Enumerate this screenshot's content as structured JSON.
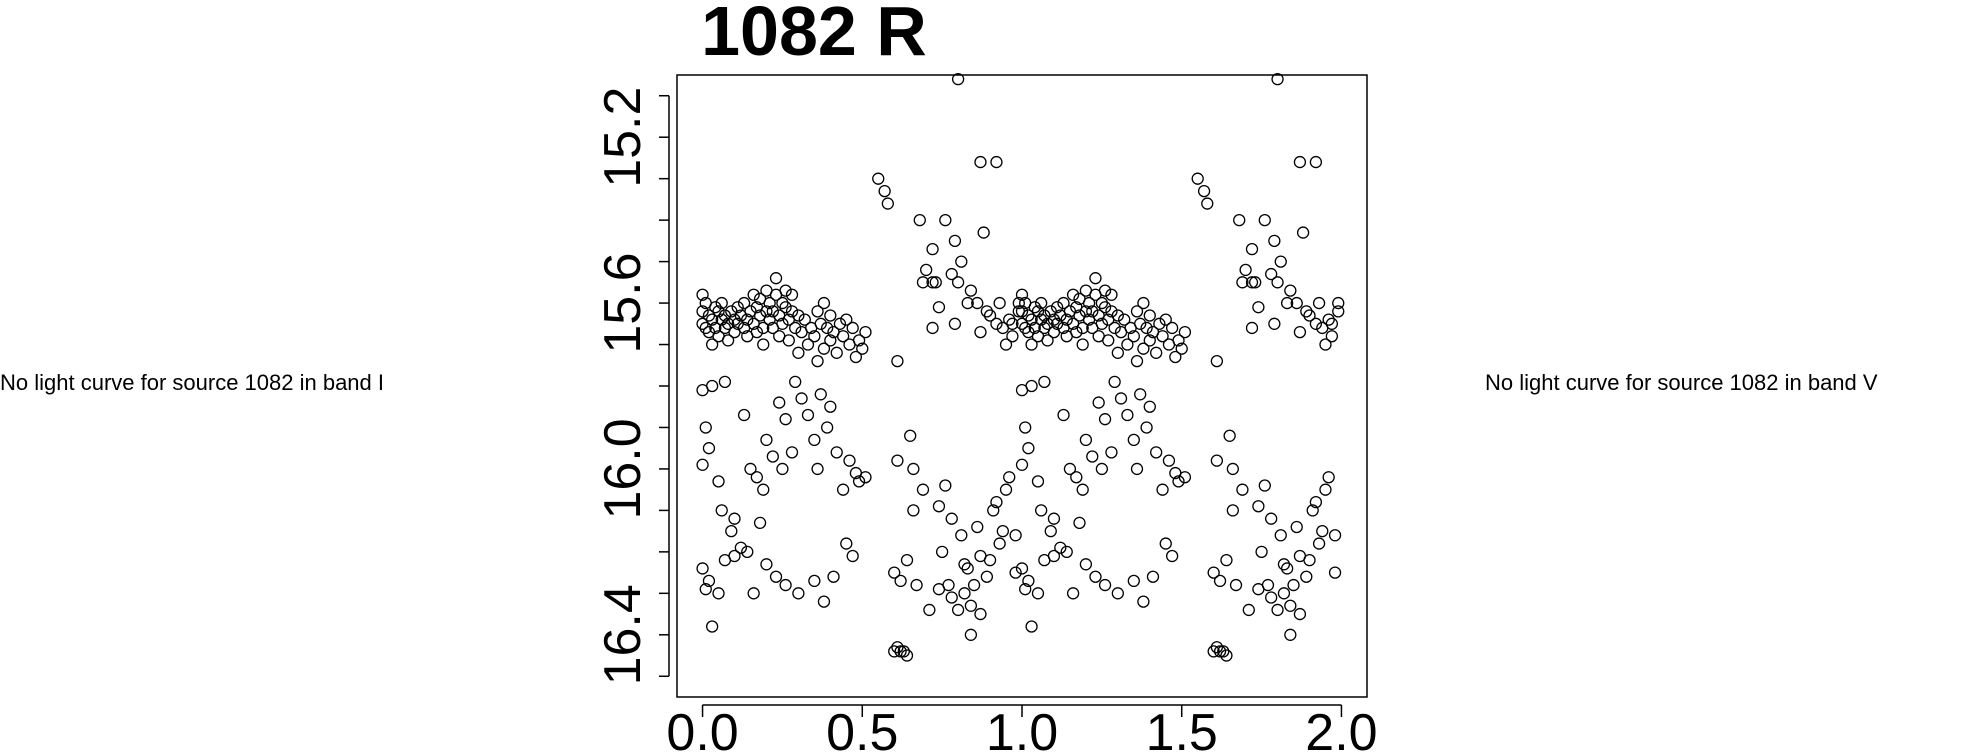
{
  "left_note": "No light curve for source 1082 in band I",
  "right_note": "No light curve for source 1082 in band V",
  "chart_data": {
    "type": "scatter",
    "title": "1082 R",
    "xlabel": "",
    "ylabel": "",
    "xlim": [
      -0.08,
      2.08
    ],
    "ylim": [
      16.55,
      15.05
    ],
    "y_inverted": true,
    "x_ticks": [
      "0.0",
      "0.5",
      "1.0",
      "1.5",
      "2.0"
    ],
    "x_tick_values": [
      0.0,
      0.5,
      1.0,
      1.5,
      2.0
    ],
    "y_ticks": [
      "15.2",
      "15.6",
      "16.0",
      "16.4"
    ],
    "y_tick_values": [
      15.2,
      15.6,
      16.0,
      16.4
    ],
    "y_minor_ticks": [
      15.1,
      15.3,
      15.4,
      15.5,
      15.7,
      15.8,
      15.9,
      16.1,
      16.2,
      16.3,
      16.5
    ],
    "marker": "open-circle",
    "marker_color": "#000000",
    "grid": false,
    "phased_duplicate_offset": 1.0,
    "points_phase_0_to_1": [
      [
        0.0,
        15.62
      ],
      [
        0.0,
        15.65
      ],
      [
        0.0,
        15.58
      ],
      [
        0.01,
        15.66
      ],
      [
        0.01,
        15.6
      ],
      [
        0.02,
        15.63
      ],
      [
        0.02,
        15.67
      ],
      [
        0.03,
        15.64
      ],
      [
        0.03,
        15.7
      ],
      [
        0.04,
        15.61
      ],
      [
        0.04,
        15.66
      ],
      [
        0.05,
        15.62
      ],
      [
        0.05,
        15.68
      ],
      [
        0.06,
        15.64
      ],
      [
        0.06,
        15.6
      ],
      [
        0.07,
        15.66
      ],
      [
        0.07,
        15.63
      ],
      [
        0.08,
        15.65
      ],
      [
        0.08,
        15.69
      ],
      [
        0.09,
        15.62
      ],
      [
        0.1,
        15.64
      ],
      [
        0.1,
        15.67
      ],
      [
        0.11,
        15.61
      ],
      [
        0.11,
        15.65
      ],
      [
        0.12,
        15.63
      ],
      [
        0.13,
        15.66
      ],
      [
        0.13,
        15.6
      ],
      [
        0.14,
        15.64
      ],
      [
        0.14,
        15.68
      ],
      [
        0.15,
        15.62
      ],
      [
        0.16,
        15.58
      ],
      [
        0.16,
        15.65
      ],
      [
        0.17,
        15.61
      ],
      [
        0.17,
        15.67
      ],
      [
        0.18,
        15.63
      ],
      [
        0.18,
        15.59
      ],
      [
        0.19,
        15.66
      ],
      [
        0.19,
        15.7
      ],
      [
        0.2,
        15.62
      ],
      [
        0.2,
        15.57
      ],
      [
        0.21,
        15.64
      ],
      [
        0.21,
        15.6
      ],
      [
        0.22,
        15.66
      ],
      [
        0.22,
        15.62
      ],
      [
        0.23,
        15.58
      ],
      [
        0.23,
        15.54
      ],
      [
        0.24,
        15.63
      ],
      [
        0.24,
        15.68
      ],
      [
        0.25,
        15.6
      ],
      [
        0.25,
        15.65
      ],
      [
        0.26,
        15.61
      ],
      [
        0.26,
        15.57
      ],
      [
        0.27,
        15.64
      ],
      [
        0.27,
        15.69
      ],
      [
        0.28,
        15.62
      ],
      [
        0.28,
        15.58
      ],
      [
        0.29,
        15.66
      ],
      [
        0.3,
        15.63
      ],
      [
        0.3,
        15.72
      ],
      [
        0.31,
        15.67
      ],
      [
        0.32,
        15.64
      ],
      [
        0.33,
        15.7
      ],
      [
        0.34,
        15.66
      ],
      [
        0.35,
        15.68
      ],
      [
        0.36,
        15.62
      ],
      [
        0.36,
        15.74
      ],
      [
        0.37,
        15.65
      ],
      [
        0.38,
        15.6
      ],
      [
        0.38,
        15.71
      ],
      [
        0.39,
        15.66
      ],
      [
        0.4,
        15.63
      ],
      [
        0.4,
        15.69
      ],
      [
        0.41,
        15.67
      ],
      [
        0.42,
        15.72
      ],
      [
        0.43,
        15.65
      ],
      [
        0.44,
        15.68
      ],
      [
        0.45,
        15.64
      ],
      [
        0.46,
        15.7
      ],
      [
        0.47,
        15.66
      ],
      [
        0.48,
        15.73
      ],
      [
        0.49,
        15.69
      ],
      [
        0.5,
        15.71
      ],
      [
        0.51,
        15.67
      ],
      [
        0.0,
        15.81
      ],
      [
        0.01,
        15.9
      ],
      [
        0.02,
        15.95
      ],
      [
        0.03,
        15.8
      ],
      [
        0.05,
        16.03
      ],
      [
        0.06,
        16.1
      ],
      [
        0.07,
        15.79
      ],
      [
        0.09,
        16.15
      ],
      [
        0.1,
        16.12
      ],
      [
        0.12,
        16.19
      ],
      [
        0.13,
        15.87
      ],
      [
        0.15,
        16.0
      ],
      [
        0.17,
        16.02
      ],
      [
        0.18,
        16.13
      ],
      [
        0.19,
        16.05
      ],
      [
        0.2,
        15.93
      ],
      [
        0.22,
        15.97
      ],
      [
        0.24,
        15.84
      ],
      [
        0.25,
        16.0
      ],
      [
        0.26,
        15.88
      ],
      [
        0.28,
        15.96
      ],
      [
        0.29,
        15.79
      ],
      [
        0.31,
        15.83
      ],
      [
        0.33,
        15.87
      ],
      [
        0.35,
        15.93
      ],
      [
        0.36,
        16.0
      ],
      [
        0.37,
        15.82
      ],
      [
        0.39,
        15.9
      ],
      [
        0.4,
        15.85
      ],
      [
        0.42,
        15.96
      ],
      [
        0.44,
        16.05
      ],
      [
        0.46,
        15.98
      ],
      [
        0.48,
        16.01
      ],
      [
        0.49,
        16.03
      ],
      [
        0.51,
        16.02
      ],
      [
        0.0,
        16.24
      ],
      [
        0.01,
        16.29
      ],
      [
        0.02,
        16.27
      ],
      [
        0.03,
        16.38
      ],
      [
        0.05,
        16.3
      ],
      [
        0.07,
        16.22
      ],
      [
        0.1,
        16.21
      ],
      [
        0.14,
        16.2
      ],
      [
        0.16,
        16.3
      ],
      [
        0.2,
        16.23
      ],
      [
        0.23,
        16.26
      ],
      [
        0.26,
        16.28
      ],
      [
        0.3,
        16.3
      ],
      [
        0.35,
        16.27
      ],
      [
        0.38,
        16.32
      ],
      [
        0.41,
        16.26
      ],
      [
        0.45,
        16.18
      ],
      [
        0.47,
        16.21
      ],
      [
        0.55,
        15.3
      ],
      [
        0.57,
        15.33
      ],
      [
        0.58,
        15.36
      ],
      [
        0.6,
        16.25
      ],
      [
        0.61,
        15.74
      ],
      [
        0.62,
        16.44
      ],
      [
        0.64,
        16.45
      ],
      [
        0.65,
        15.92
      ],
      [
        0.66,
        16.0
      ],
      [
        0.67,
        16.28
      ],
      [
        0.68,
        15.4
      ],
      [
        0.69,
        15.55
      ],
      [
        0.7,
        15.52
      ],
      [
        0.71,
        16.34
      ],
      [
        0.72,
        15.47
      ],
      [
        0.73,
        15.55
      ],
      [
        0.74,
        16.29
      ],
      [
        0.75,
        16.2
      ],
      [
        0.76,
        15.4
      ],
      [
        0.77,
        16.28
      ],
      [
        0.78,
        16.31
      ],
      [
        0.79,
        15.45
      ],
      [
        0.8,
        15.55
      ],
      [
        0.81,
        15.5
      ],
      [
        0.81,
        16.16
      ],
      [
        0.82,
        16.3
      ],
      [
        0.83,
        16.24
      ],
      [
        0.84,
        15.57
      ],
      [
        0.84,
        16.4
      ],
      [
        0.85,
        16.28
      ],
      [
        0.86,
        15.6
      ],
      [
        0.87,
        16.35
      ],
      [
        0.88,
        15.43
      ],
      [
        0.89,
        15.62
      ],
      [
        0.9,
        16.22
      ],
      [
        0.91,
        16.1
      ],
      [
        0.92,
        15.65
      ],
      [
        0.93,
        16.18
      ],
      [
        0.94,
        15.66
      ],
      [
        0.95,
        16.05
      ],
      [
        0.96,
        15.64
      ],
      [
        0.97,
        15.68
      ],
      [
        0.98,
        16.25
      ],
      [
        0.99,
        15.62
      ],
      [
        0.0,
        15.99
      ],
      [
        0.6,
        16.44
      ],
      [
        0.61,
        16.43
      ],
      [
        0.61,
        15.98
      ],
      [
        0.62,
        16.27
      ],
      [
        0.63,
        16.44
      ],
      [
        0.64,
        16.22
      ],
      [
        0.66,
        16.1
      ],
      [
        0.69,
        16.05
      ],
      [
        0.72,
        15.66
      ],
      [
        0.74,
        16.09
      ],
      [
        0.76,
        16.04
      ],
      [
        0.78,
        16.12
      ],
      [
        0.8,
        16.34
      ],
      [
        0.82,
        16.23
      ],
      [
        0.84,
        16.33
      ],
      [
        0.86,
        16.14
      ],
      [
        0.87,
        16.21
      ],
      [
        0.89,
        16.26
      ],
      [
        0.92,
        16.08
      ],
      [
        0.94,
        16.15
      ],
      [
        0.96,
        16.02
      ],
      [
        0.98,
        16.16
      ],
      [
        0.8,
        15.06
      ],
      [
        0.87,
        15.26
      ],
      [
        0.92,
        15.26
      ],
      [
        0.74,
        15.61
      ],
      [
        0.72,
        15.55
      ],
      [
        0.78,
        15.53
      ],
      [
        0.79,
        15.65
      ],
      [
        0.83,
        15.6
      ],
      [
        0.87,
        15.67
      ],
      [
        0.9,
        15.63
      ],
      [
        0.93,
        15.6
      ],
      [
        0.95,
        15.7
      ],
      [
        0.97,
        15.65
      ],
      [
        0.99,
        15.6
      ]
    ]
  }
}
